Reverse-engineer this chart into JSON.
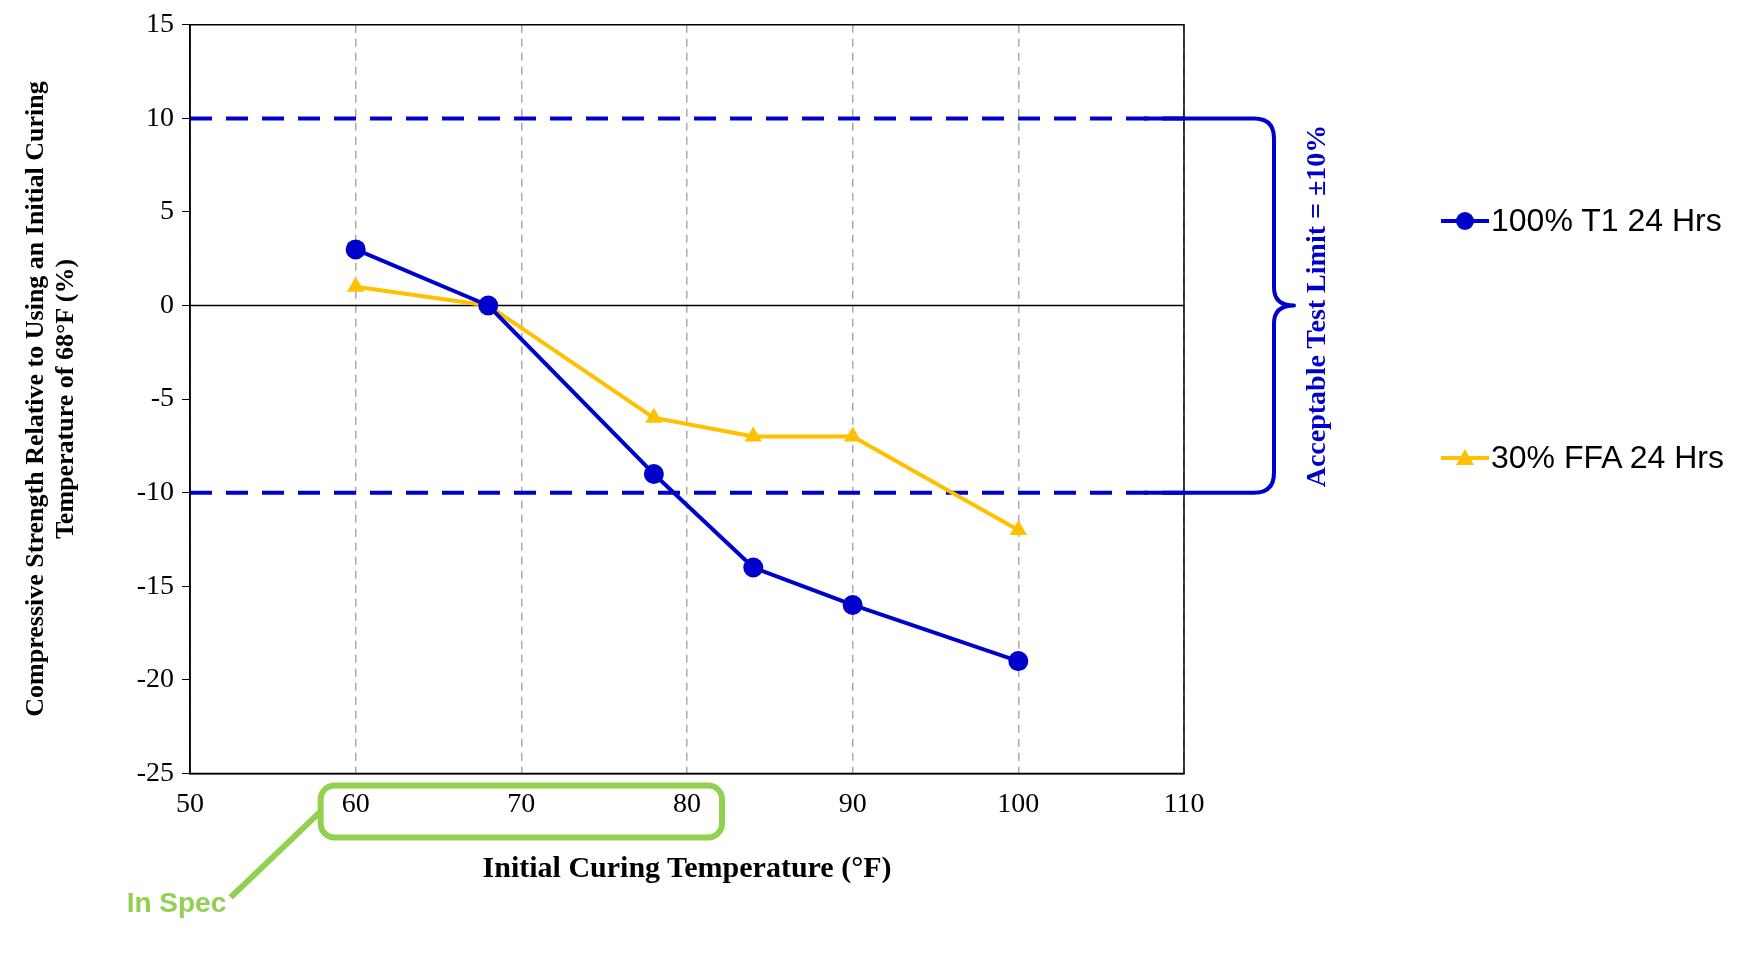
{
  "chart_data": {
    "type": "line",
    "xlabel": "Initial Curing Temperature (°F)",
    "ylabel": "Compressive Strength Relative to Using an Initial Curing Temperature of 68°F (%)",
    "x": [
      60,
      68,
      78,
      84,
      90,
      100
    ],
    "series": [
      {
        "name": "100% T1 24 Hrs",
        "color": "#0000cc",
        "marker": "circle",
        "values": [
          3,
          0,
          -9,
          -14,
          -16,
          -19
        ]
      },
      {
        "name": "30% FFA 24 Hrs",
        "color": "#ffc000",
        "marker": "triangle",
        "values": [
          1,
          0,
          -6,
          -7,
          -7,
          -12
        ]
      }
    ],
    "xlim": [
      50,
      110
    ],
    "xticks": [
      50,
      60,
      70,
      80,
      90,
      100,
      110
    ],
    "ylim": [
      -25,
      15
    ],
    "yticks": [
      -25,
      -20,
      -15,
      -10,
      -5,
      0,
      5,
      10,
      15
    ],
    "ref_lines": [
      {
        "axis": "y",
        "value": 10,
        "color": "#0000cc",
        "line_style": "dashed"
      },
      {
        "axis": "y",
        "value": -10,
        "color": "#0000cc",
        "line_style": "dashed"
      },
      {
        "axis": "y",
        "value": 0,
        "color": "#000000",
        "line_style": "solid"
      }
    ],
    "annotations": [
      "Acceptable Test Limit = ±10%",
      "In Spec"
    ],
    "grid": "x",
    "legend": "right",
    "line_style": "solid"
  }
}
